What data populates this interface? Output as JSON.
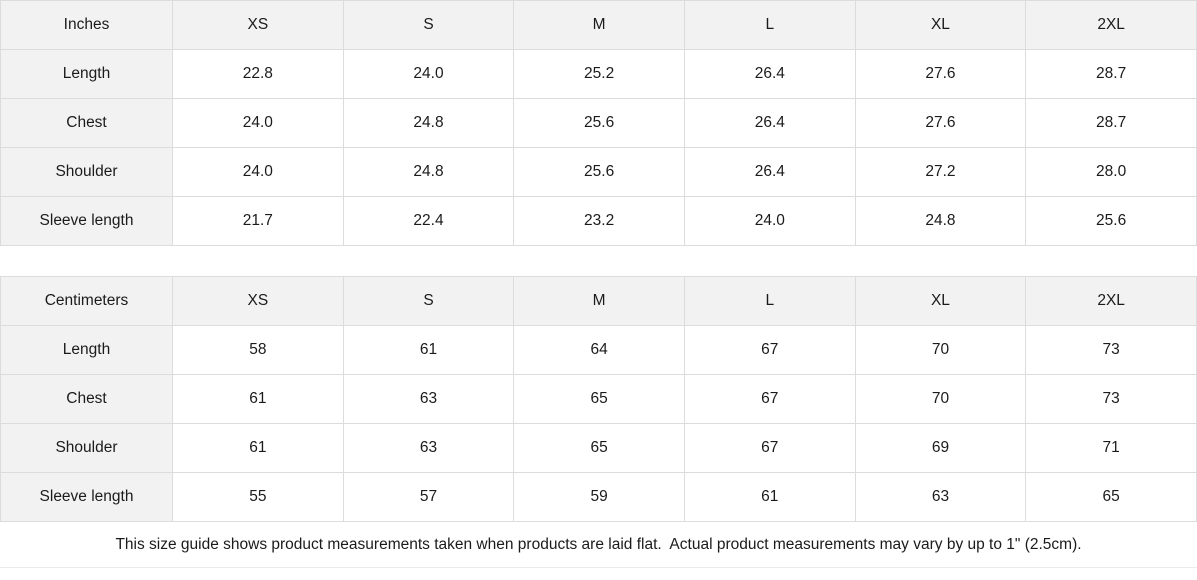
{
  "colors": {
    "header_bg": "#f2f2f2",
    "border": "#dcdcdc",
    "text": "#1b1b1b",
    "background": "#ffffff"
  },
  "inches": {
    "unit": "Inches",
    "columns": [
      "XS",
      "S",
      "M",
      "L",
      "XL",
      "2XL"
    ],
    "rows": [
      {
        "label": "Length",
        "values": [
          "22.8",
          "24.0",
          "25.2",
          "26.4",
          "27.6",
          "28.7"
        ]
      },
      {
        "label": "Chest",
        "values": [
          "24.0",
          "24.8",
          "25.6",
          "26.4",
          "27.6",
          "28.7"
        ]
      },
      {
        "label": "Shoulder",
        "values": [
          "24.0",
          "24.8",
          "25.6",
          "26.4",
          "27.2",
          "28.0"
        ]
      },
      {
        "label": "Sleeve length",
        "values": [
          "21.7",
          "22.4",
          "23.2",
          "24.0",
          "24.8",
          "25.6"
        ]
      }
    ]
  },
  "centimeters": {
    "unit": "Centimeters",
    "columns": [
      "XS",
      "S",
      "M",
      "L",
      "XL",
      "2XL"
    ],
    "rows": [
      {
        "label": "Length",
        "values": [
          "58",
          "61",
          "64",
          "67",
          "70",
          "73"
        ]
      },
      {
        "label": "Chest",
        "values": [
          "61",
          "63",
          "65",
          "67",
          "70",
          "73"
        ]
      },
      {
        "label": "Shoulder",
        "values": [
          "61",
          "63",
          "65",
          "67",
          "69",
          "71"
        ]
      },
      {
        "label": "Sleeve length",
        "values": [
          "55",
          "57",
          "59",
          "61",
          "63",
          "65"
        ]
      }
    ]
  },
  "footer": {
    "note": "This size guide shows product measurements taken when products are laid flat.  Actual product measurements may vary by up to 1\" (2.5cm)."
  }
}
